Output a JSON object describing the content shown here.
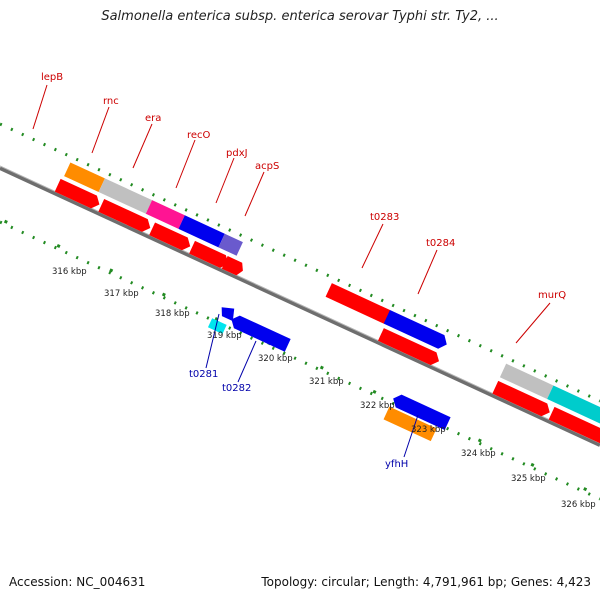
{
  "title": "Salmonella enterica subsp. enterica serovar Typhi str. Ty2, ...",
  "footer": {
    "accession": "Accession: NC_004631",
    "topology": "Topology: circular; Length: 4,791,961 bp; Genes: 4,423"
  },
  "colors": {
    "label_top": "#cc0000",
    "label_bottom": "#0000aa",
    "dots": "#228b22",
    "backbone": "#777777",
    "gene_red": "#ff0000",
    "gene_blue": "#0000ee",
    "gene_orange": "#ff8c00",
    "gene_gray": "#c0c0c0",
    "gene_magenta": "#ff1493",
    "gene_lime": "#aaee33",
    "gene_cyan": "#00cccc",
    "gene_purple": "#6a5acd"
  },
  "kbp_labels": [
    "316 kbp",
    "317 kbp",
    "318 kbp",
    "319 kbp",
    "320 kbp",
    "321 kbp",
    "322 kbp",
    "323 kbp",
    "324 kbp",
    "325 kbp",
    "326 kbp"
  ],
  "gene_labels_top": [
    "lepB",
    "rnc",
    "era",
    "recO",
    "pdxJ",
    "acpS",
    "t0283",
    "t0284",
    "murQ"
  ],
  "gene_labels_bottom": [
    "t0281",
    "t0282",
    "yfhH"
  ]
}
